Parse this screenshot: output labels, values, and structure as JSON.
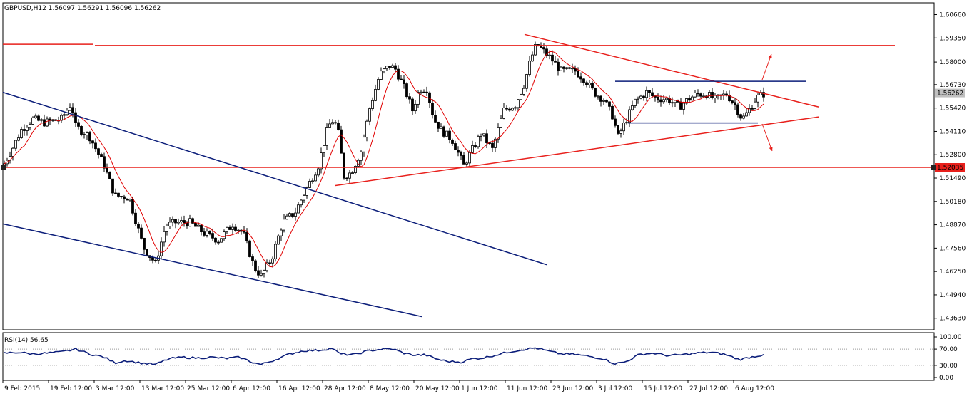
{
  "chart_data": [
    {
      "type": "candlestick",
      "title": "GBPUSD,H12  1.56097 1.56291 1.56096 1.56262",
      "price_badges": {
        "current": "1.56262",
        "level": "1.52035"
      },
      "yticks": [
        "1.60660",
        "1.59350",
        "1.58000",
        "1.56730",
        "1.55420",
        "1.54110",
        "1.52800",
        "1.51490",
        "1.50180",
        "1.48870",
        "1.47560",
        "1.46250",
        "1.44940",
        "1.43630"
      ],
      "ylim": [
        1.4298,
        1.6132
      ],
      "xticks": [
        "9 Feb 2015",
        "19 Feb 12:00",
        "3 Mar 12:00",
        "13 Mar 12:00",
        "25 Mar 12:00",
        "6 Apr 12:00",
        "16 Apr 12:00",
        "28 Apr 12:00",
        "8 May 12:00",
        "20 May 12:00",
        "1 Jun 12:00",
        "11 Jun 12:00",
        "23 Jun 12:00",
        "3 Jul 12:00",
        "15 Jul 12:00",
        "27 Jul 12:00",
        "6 Aug 12:00"
      ],
      "x_pos": [
        0,
        64,
        128,
        192,
        256,
        320,
        384,
        448,
        512,
        576,
        640,
        704,
        768,
        832,
        896,
        960,
        1024
      ],
      "close_anchors": [
        [
          0,
          1.523
        ],
        [
          12,
          1.532
        ],
        [
          24,
          1.542
        ],
        [
          40,
          1.548
        ],
        [
          56,
          1.546
        ],
        [
          80,
          1.548
        ],
        [
          94,
          1.557
        ],
        [
          100,
          1.544
        ],
        [
          120,
          1.538
        ],
        [
          140,
          1.522
        ],
        [
          155,
          1.505
        ],
        [
          175,
          1.504
        ],
        [
          195,
          1.476
        ],
        [
          212,
          1.467
        ],
        [
          226,
          1.488
        ],
        [
          240,
          1.49
        ],
        [
          260,
          1.49
        ],
        [
          280,
          1.484
        ],
        [
          300,
          1.48
        ],
        [
          320,
          1.489
        ],
        [
          335,
          1.484
        ],
        [
          350,
          1.465
        ],
        [
          360,
          1.46
        ],
        [
          375,
          1.47
        ],
        [
          390,
          1.49
        ],
        [
          408,
          1.496
        ],
        [
          420,
          1.506
        ],
        [
          440,
          1.522
        ],
        [
          454,
          1.544
        ],
        [
          462,
          1.548
        ],
        [
          468,
          1.54
        ],
        [
          476,
          1.516
        ],
        [
          486,
          1.518
        ],
        [
          500,
          1.53
        ],
        [
          512,
          1.554
        ],
        [
          526,
          1.573
        ],
        [
          540,
          1.578
        ],
        [
          548,
          1.576
        ],
        [
          562,
          1.564
        ],
        [
          572,
          1.553
        ],
        [
          582,
          1.565
        ],
        [
          592,
          1.565
        ],
        [
          602,
          1.548
        ],
        [
          612,
          1.542
        ],
        [
          628,
          1.536
        ],
        [
          644,
          1.522
        ],
        [
          656,
          1.531
        ],
        [
          668,
          1.54
        ],
        [
          684,
          1.531
        ],
        [
          700,
          1.553
        ],
        [
          716,
          1.556
        ],
        [
          728,
          1.567
        ],
        [
          738,
          1.582
        ],
        [
          746,
          1.59
        ],
        [
          756,
          1.586
        ],
        [
          766,
          1.582
        ],
        [
          780,
          1.575
        ],
        [
          800,
          1.575
        ],
        [
          814,
          1.57
        ],
        [
          826,
          1.563
        ],
        [
          840,
          1.559
        ],
        [
          852,
          1.55
        ],
        [
          860,
          1.538
        ],
        [
          872,
          1.548
        ],
        [
          884,
          1.558
        ],
        [
          900,
          1.563
        ],
        [
          912,
          1.56
        ],
        [
          930,
          1.559
        ],
        [
          946,
          1.555
        ],
        [
          958,
          1.559
        ],
        [
          970,
          1.562
        ],
        [
          984,
          1.562
        ],
        [
          996,
          1.559
        ],
        [
          1012,
          1.562
        ],
        [
          1024,
          1.556
        ],
        [
          1034,
          1.548
        ],
        [
          1042,
          1.552
        ],
        [
          1054,
          1.56
        ],
        [
          1066,
          1.5626
        ]
      ]
    },
    {
      "type": "line",
      "title": "RSI(14) 56.65",
      "yticks": [
        "100.00",
        "70.00",
        "30.00",
        "0.00"
      ],
      "ylim": [
        0,
        100
      ],
      "rsi_anchors": [
        [
          0,
          60
        ],
        [
          20,
          62
        ],
        [
          40,
          58
        ],
        [
          60,
          60
        ],
        [
          80,
          63
        ],
        [
          100,
          70
        ],
        [
          120,
          58
        ],
        [
          140,
          50
        ],
        [
          155,
          36
        ],
        [
          170,
          42
        ],
        [
          190,
          36
        ],
        [
          212,
          32
        ],
        [
          230,
          46
        ],
        [
          250,
          50
        ],
        [
          270,
          48
        ],
        [
          290,
          50
        ],
        [
          310,
          47
        ],
        [
          330,
          50
        ],
        [
          350,
          36
        ],
        [
          360,
          32
        ],
        [
          380,
          44
        ],
        [
          400,
          58
        ],
        [
          420,
          66
        ],
        [
          440,
          67
        ],
        [
          460,
          72
        ],
        [
          470,
          58
        ],
        [
          490,
          56
        ],
        [
          510,
          66
        ],
        [
          530,
          70
        ],
        [
          545,
          70
        ],
        [
          560,
          60
        ],
        [
          575,
          55
        ],
        [
          590,
          56
        ],
        [
          605,
          46
        ],
        [
          620,
          40
        ],
        [
          640,
          38
        ],
        [
          655,
          46
        ],
        [
          670,
          48
        ],
        [
          690,
          56
        ],
        [
          710,
          64
        ],
        [
          730,
          70
        ],
        [
          745,
          73
        ],
        [
          760,
          66
        ],
        [
          780,
          58
        ],
        [
          800,
          57
        ],
        [
          820,
          52
        ],
        [
          840,
          46
        ],
        [
          855,
          34
        ],
        [
          870,
          38
        ],
        [
          890,
          57
        ],
        [
          910,
          60
        ],
        [
          930,
          54
        ],
        [
          950,
          56
        ],
        [
          970,
          60
        ],
        [
          990,
          62
        ],
        [
          1010,
          57
        ],
        [
          1030,
          44
        ],
        [
          1045,
          50
        ],
        [
          1066,
          56.65
        ]
      ]
    }
  ]
}
